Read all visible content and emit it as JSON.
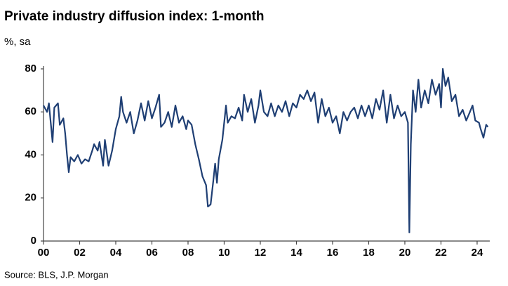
{
  "chart_data": {
    "type": "line",
    "title": "Private industry diffusion index: 1-month",
    "subtitle": "%, sa",
    "source": "Source: BLS, J.P. Morgan",
    "series": [
      {
        "name": "Private industry diffusion index: 1-month",
        "color": "#1f3f74",
        "x": [
          2000.0,
          2000.2,
          2000.3,
          2000.5,
          2000.6,
          2000.8,
          2000.9,
          2001.1,
          2001.2,
          2001.3,
          2001.4,
          2001.5,
          2001.7,
          2001.9,
          2002.1,
          2002.3,
          2002.5,
          2002.7,
          2002.8,
          2003.0,
          2003.1,
          2003.3,
          2003.4,
          2003.6,
          2003.8,
          2004.0,
          2004.2,
          2004.3,
          2004.4,
          2004.6,
          2004.8,
          2005.0,
          2005.2,
          2005.4,
          2005.6,
          2005.8,
          2006.0,
          2006.2,
          2006.4,
          2006.5,
          2006.7,
          2006.9,
          2007.1,
          2007.3,
          2007.5,
          2007.7,
          2007.9,
          2008.0,
          2008.2,
          2008.4,
          2008.6,
          2008.8,
          2009.0,
          2009.1,
          2009.25,
          2009.4,
          2009.5,
          2009.6,
          2009.7,
          2009.9,
          2010.0,
          2010.1,
          2010.2,
          2010.4,
          2010.6,
          2010.8,
          2011.0,
          2011.1,
          2011.3,
          2011.5,
          2011.7,
          2011.9,
          2012.0,
          2012.2,
          2012.4,
          2012.6,
          2012.8,
          2013.0,
          2013.2,
          2013.4,
          2013.6,
          2013.8,
          2014.0,
          2014.2,
          2014.4,
          2014.6,
          2014.8,
          2015.0,
          2015.2,
          2015.4,
          2015.6,
          2015.8,
          2016.0,
          2016.2,
          2016.4,
          2016.6,
          2016.8,
          2017.0,
          2017.2,
          2017.4,
          2017.6,
          2017.8,
          2018.0,
          2018.2,
          2018.4,
          2018.6,
          2018.8,
          2019.0,
          2019.2,
          2019.4,
          2019.6,
          2019.8,
          2020.0,
          2020.1,
          2020.17,
          2020.25,
          2020.33,
          2020.45,
          2020.6,
          2020.75,
          2020.9,
          2021.1,
          2021.3,
          2021.5,
          2021.7,
          2021.9,
          2022.0,
          2022.1,
          2022.25,
          2022.4,
          2022.6,
          2022.8,
          2023.0,
          2023.2,
          2023.4,
          2023.6,
          2023.75,
          2023.9,
          2024.1,
          2024.2,
          2024.35,
          2024.5,
          2024.6
        ],
        "values": [
          63,
          60,
          64,
          46,
          62,
          64,
          54,
          57,
          50,
          40,
          32,
          39,
          37,
          40,
          36,
          38,
          37,
          42,
          45,
          42,
          46,
          35,
          47,
          35,
          42,
          52,
          58,
          67,
          60,
          55,
          60,
          50,
          56,
          64,
          56,
          65,
          57,
          62,
          68,
          53,
          55,
          60,
          53,
          63,
          55,
          58,
          52,
          56,
          54,
          45,
          38,
          30,
          26,
          16,
          17,
          28,
          36,
          27,
          38,
          47,
          55,
          63,
          55,
          58,
          57,
          62,
          56,
          68,
          60,
          66,
          55,
          63,
          70,
          60,
          58,
          64,
          58,
          63,
          60,
          65,
          58,
          64,
          62,
          68,
          66,
          70,
          65,
          69,
          55,
          66,
          58,
          62,
          55,
          58,
          50,
          60,
          56,
          60,
          62,
          57,
          63,
          58,
          63,
          57,
          66,
          61,
          70,
          55,
          68,
          57,
          63,
          58,
          60,
          57,
          55,
          4,
          45,
          70,
          60,
          75,
          62,
          70,
          64,
          75,
          68,
          73,
          62,
          80,
          72,
          76,
          65,
          68,
          58,
          61,
          56,
          60,
          63,
          56,
          55,
          52,
          48,
          54,
          53
        ]
      }
    ],
    "xlim": [
      2000,
      2024.7
    ],
    "xticks": [
      {
        "value": 2000,
        "label": "00"
      },
      {
        "value": 2002,
        "label": "02"
      },
      {
        "value": 2004,
        "label": "04"
      },
      {
        "value": 2006,
        "label": "06"
      },
      {
        "value": 2008,
        "label": "08"
      },
      {
        "value": 2010,
        "label": "10"
      },
      {
        "value": 2012,
        "label": "12"
      },
      {
        "value": 2014,
        "label": "14"
      },
      {
        "value": 2016,
        "label": "16"
      },
      {
        "value": 2018,
        "label": "18"
      },
      {
        "value": 2020,
        "label": "20"
      },
      {
        "value": 2022,
        "label": "22"
      },
      {
        "value": 2024,
        "label": "24"
      }
    ],
    "ylim": [
      0,
      80
    ],
    "yticks": [
      0,
      20,
      40,
      60,
      80
    ],
    "grid": false
  }
}
